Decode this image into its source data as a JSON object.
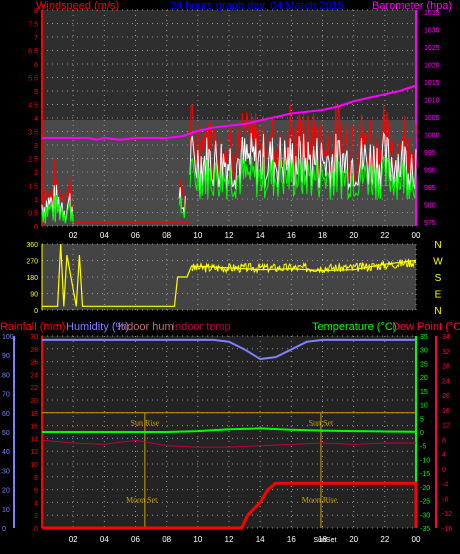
{
  "header": {
    "wind_label": "Windspeed (m/s)",
    "title": "24 hours graph day, 04 March 2015",
    "baro_label": "Barometer (hpa)"
  },
  "bottom_header": {
    "rain": "Rainfall (mm)",
    "humidity": "Humidity (%)",
    "indoor_hum": "Indoor hum",
    "indoor_temp": "Indoor temp",
    "temperature": "Temperature (°C)",
    "dewpoint": "Dew Point (°C)"
  },
  "colors": {
    "wind": "#ff0000",
    "gust": "#ffffff",
    "windavg": "#00ff00",
    "barometer": "#ff00ff",
    "direction": "#ffff00",
    "humidity": "#8080ff",
    "temperature": "#00ff00",
    "dewpoint": "#ff0040",
    "indoor_temp": "#c00040",
    "rainfall": "#ff0000",
    "sun": "#c8a000"
  },
  "chart_data": [
    {
      "type": "line",
      "name": "wind_barometer",
      "x_ticks": [
        "02",
        "04",
        "06",
        "08",
        "10",
        "12",
        "14",
        "16",
        "18",
        "20",
        "22",
        "00"
      ],
      "y_left_ticks": [
        "0",
        "0.5",
        "1",
        "1.5",
        "2",
        "2.5",
        "3",
        "3.5",
        "4",
        "4.5",
        "5",
        "5.5",
        "6",
        "6.5",
        "7",
        "7.5",
        "8"
      ],
      "y_left_range": [
        0,
        8
      ],
      "y_right_ticks": [
        "975",
        "980",
        "985",
        "990",
        "995",
        "1000",
        "1005",
        "1010",
        "1015",
        "1020",
        "1025",
        "1030",
        "1035"
      ],
      "y_right_range": [
        975,
        1035
      ],
      "barometer": {
        "x": [
          0,
          3,
          3.5,
          4,
          5,
          6,
          7,
          8,
          9,
          10,
          11,
          12,
          13,
          14,
          15,
          16,
          17,
          18,
          19,
          20,
          21,
          22,
          23,
          24
        ],
        "values": [
          999,
          999,
          998.5,
          999,
          998.5,
          999,
          999,
          999,
          999.5,
          1001,
          1002,
          1002.5,
          1003,
          1004,
          1005,
          1006,
          1006.5,
          1007,
          1008,
          1009.5,
          1010.5,
          1011.5,
          1012.5,
          1014
        ]
      },
      "wind_segments": [
        {
          "x": [
            0,
            2
          ],
          "values": [
            0,
            1.6
          ]
        },
        {
          "x": [
            8.8,
            9.2
          ],
          "values": [
            0,
            1.5
          ]
        },
        {
          "x": [
            9.5,
            24
          ],
          "values": [
            1.3,
            3.5
          ]
        }
      ]
    },
    {
      "type": "line",
      "name": "wind_direction",
      "x_ticks": [
        "02",
        "04",
        "06",
        "08",
        "10",
        "12",
        "14",
        "16",
        "18",
        "20",
        "22",
        "00"
      ],
      "y_left_ticks": [
        "0",
        "90",
        "180",
        "270",
        "360"
      ],
      "y_range": [
        0,
        360
      ],
      "compass": [
        "N",
        "W",
        "S",
        "E",
        "N"
      ],
      "direction": {
        "x": [
          0,
          1,
          1.2,
          1.4,
          1.6,
          2.2,
          2.4,
          2.6,
          3,
          8.5,
          8.7,
          9.3,
          9.6,
          12,
          14,
          16,
          18,
          20,
          22,
          24
        ],
        "values": [
          20,
          20,
          360,
          20,
          300,
          20,
          300,
          20,
          20,
          20,
          180,
          180,
          240,
          230,
          220,
          225,
          215,
          220,
          250,
          270
        ]
      }
    },
    {
      "type": "line",
      "name": "temp_hum_rain",
      "x_ticks": [
        "02",
        "04",
        "06",
        "08",
        "10",
        "12",
        "14",
        "16",
        "18",
        "20",
        "22",
        "00"
      ],
      "y_far_left_ticks": [
        "0",
        "2",
        "4",
        "6",
        "8",
        "10",
        "12",
        "14",
        "16",
        "18",
        "20",
        "22",
        "24",
        "26",
        "28",
        "30"
      ],
      "y_left_ticks": [
        "0",
        "10",
        "20",
        "30",
        "40",
        "50",
        "60",
        "70",
        "80",
        "90",
        "100"
      ],
      "y_right_ticks": [
        "-35",
        "-30",
        "-25",
        "-20",
        "-15",
        "-10",
        "-5",
        "0",
        "5",
        "10",
        "15",
        "20",
        "25",
        "30",
        "35"
      ],
      "y_far_right_ticks": [
        "-16",
        "-12",
        "-8",
        "-4",
        "0",
        "4",
        "8",
        "12",
        "16",
        "20",
        "24",
        "28",
        "32",
        "34"
      ],
      "humidity": {
        "x": [
          0,
          11,
          12,
          13,
          14,
          15,
          16,
          17,
          18,
          24
        ],
        "values": [
          98,
          98,
          97,
          93,
          88,
          89,
          93,
          97,
          98,
          98
        ]
      },
      "temperature": {
        "x": [
          0,
          8,
          10,
          12,
          14,
          16,
          18,
          20,
          22,
          24
        ],
        "values": [
          0,
          0,
          0.3,
          1,
          1.3,
          0.8,
          0.5,
          0.3,
          0.2,
          0.1
        ]
      },
      "dewpoint": {
        "x": [
          0,
          2,
          4,
          6,
          8,
          10,
          12,
          14,
          16,
          18,
          20,
          22,
          24
        ],
        "values": [
          -3,
          -4,
          -4.5,
          -3,
          -5,
          -5.5,
          -5.5,
          -5,
          -4.5,
          -4,
          -4.5,
          -4,
          -4
        ]
      },
      "rainfall": {
        "x": [
          0,
          12.8,
          13.2,
          14,
          14.5,
          15,
          24,
          24
        ],
        "values": [
          0,
          0,
          2,
          4,
          6,
          7,
          7,
          0
        ]
      },
      "sun_rise_x": 6.6,
      "sun_set_x": 17.9,
      "moon_set_x": 6.4,
      "moon_rise_x": 17.8,
      "annotations": {
        "sun_rise": "Sun Rise",
        "sun_set": "Sun Set",
        "moon_set": "Moon Set",
        "moon_rise": "Moon Rise",
        "sun_set_bottom": "SunSet"
      }
    }
  ]
}
